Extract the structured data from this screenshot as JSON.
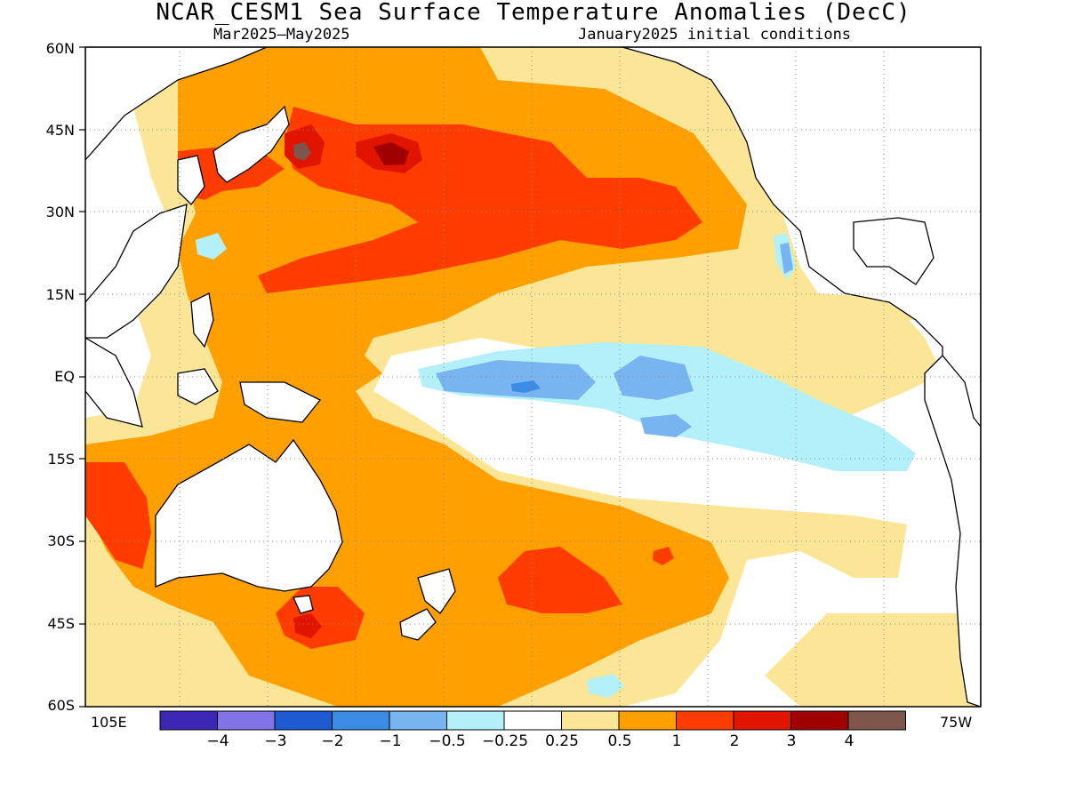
{
  "header": {
    "title": "NCAR_CESM1 Sea Surface Temperature Anomalies (DecC)",
    "period": "Mar2025–May2025",
    "init": "January2025 initial conditions"
  },
  "axes": {
    "lat_labels": [
      "60N",
      "45N",
      "30N",
      "15N",
      "EQ",
      "15S",
      "30S",
      "45S",
      "60S"
    ],
    "lon_left": "105E",
    "lon_right": "75W"
  },
  "colorbar": {
    "colors": [
      "#3c28b4",
      "#8273e6",
      "#1e5ad2",
      "#3c8ce6",
      "#78b4f0",
      "#b4f0fa",
      "#ffffff",
      "#fae696",
      "#ffa000",
      "#ff3c00",
      "#e11400",
      "#a00000",
      "#7d554b"
    ],
    "labels": [
      "−4",
      "−3",
      "−2",
      "−1",
      "−0.5",
      "−0.25",
      "0.25",
      "0.5",
      "1",
      "2",
      "3",
      "4"
    ]
  },
  "map_colors": {
    "ocean_base": "#ffffff",
    "land": "#ffffff",
    "coast": "#000000",
    "grid": "#8a8a8a"
  }
}
